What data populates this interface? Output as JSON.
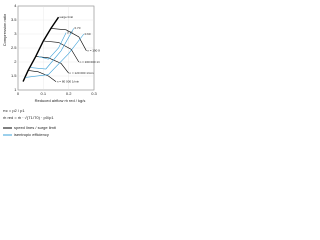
{
  "chart_data": {
    "type": "line",
    "y_label": "Compression ratio",
    "x_label": "Reduced airflow ṁ red / kg/s",
    "xlim": [
      0,
      0.3
    ],
    "xticks": [
      0,
      0.1,
      0.2,
      0.3
    ],
    "ylim": [
      1,
      4
    ],
    "yticks": [
      1,
      1.5,
      2,
      2.5,
      3,
      3.5,
      4
    ],
    "grid": true,
    "series": [
      {
        "name": "surge limit",
        "color": "#000000",
        "width": 1.4,
        "x": [
          0.02,
          0.04,
          0.07,
          0.1,
          0.13,
          0.16
        ],
        "values": [
          1.3,
          1.7,
          2.2,
          2.75,
          3.2,
          3.6
        ]
      },
      {
        "name": "n = 80 000 1/min",
        "color": "#000000",
        "width": 0.6,
        "x": [
          0.04,
          0.08,
          0.12,
          0.15
        ],
        "values": [
          1.7,
          1.65,
          1.5,
          1.3
        ]
      },
      {
        "name": "n = 120 000 1/min",
        "color": "#000000",
        "width": 0.6,
        "x": [
          0.07,
          0.12,
          0.17,
          0.2
        ],
        "values": [
          2.2,
          2.15,
          1.95,
          1.6
        ]
      },
      {
        "name": "n = 160 000 1/min",
        "color": "#000000",
        "width": 0.6,
        "x": [
          0.1,
          0.16,
          0.21,
          0.24
        ],
        "values": [
          2.75,
          2.7,
          2.45,
          2.0
        ]
      },
      {
        "name": "n = 190 000 1/min",
        "color": "#000000",
        "width": 0.6,
        "x": [
          0.13,
          0.19,
          0.24,
          0.27
        ],
        "values": [
          3.2,
          3.15,
          2.9,
          2.4
        ]
      },
      {
        "name": "0.60",
        "color": "#3aa0d8",
        "width": 0.6,
        "x": [
          0.03,
          0.12,
          0.2,
          0.26
        ],
        "values": [
          1.45,
          1.55,
          2.3,
          3.0
        ]
      },
      {
        "name": "0.70",
        "color": "#3aa0d8",
        "width": 0.6,
        "x": [
          0.05,
          0.11,
          0.17,
          0.22
        ],
        "values": [
          1.8,
          1.75,
          2.4,
          3.2
        ]
      },
      {
        "name": "0.75",
        "color": "#3aa0d8",
        "width": 0.6,
        "x": [
          0.08,
          0.12,
          0.16,
          0.19
        ],
        "values": [
          2.2,
          2.1,
          2.5,
          3.05
        ]
      }
    ],
    "formulas": [
      "πc = p2 / p1",
      "ṁ red = ṁ · √(T1/T0) · p0/p1"
    ],
    "legend_items": [
      {
        "label": "speed lines / surge limit",
        "color": "#000000"
      },
      {
        "label": "isentropic efficiency",
        "color": "#3aa0d8"
      }
    ]
  }
}
